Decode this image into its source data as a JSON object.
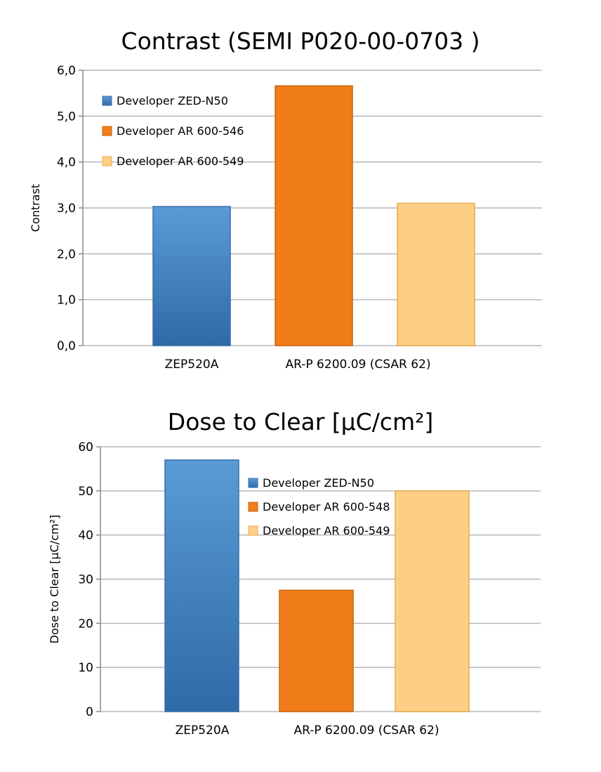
{
  "colors": {
    "blue_top": "#5a9bd6",
    "blue_bottom": "#2e6aa7",
    "blue_stroke": "#3a6fa8",
    "orange": "#f07d1a",
    "orange_stroke": "#c9650f",
    "light": "#fdcf86",
    "light_stroke": "#e9a94c"
  },
  "chart_data": [
    {
      "type": "bar",
      "title": "Contrast (SEMI P020-00-0703 )",
      "ylabel": "Contrast",
      "xlabel": "",
      "ylim": [
        0,
        6
      ],
      "yticks": [
        "0,0",
        "1,0",
        "2,0",
        "3,0",
        "4,0",
        "5,0",
        "6,0"
      ],
      "grid": true,
      "legend_position": "top-left",
      "categories": [
        "ZEP520A",
        "AR-P 6200.09 (CSAR 62)"
      ],
      "series": [
        {
          "name": "Developer ZED-N50",
          "values": [
            3.03,
            null
          ]
        },
        {
          "name": "Developer AR 600-546",
          "values": [
            null,
            5.66
          ]
        },
        {
          "name": "Developer AR 600-549",
          "values": [
            null,
            3.1
          ]
        }
      ]
    },
    {
      "type": "bar",
      "title": "Dose to Clear [µC/cm²]",
      "ylabel": "Dose to Clear [µC/cm²]",
      "xlabel": "",
      "ylim": [
        0,
        60
      ],
      "yticks": [
        "0",
        "10",
        "20",
        "30",
        "40",
        "50",
        "60"
      ],
      "grid": true,
      "legend_position": "top-center",
      "categories": [
        "ZEP520A",
        "AR-P 6200.09 (CSAR 62)"
      ],
      "series": [
        {
          "name": "Developer ZED-N50",
          "values": [
            57,
            null
          ]
        },
        {
          "name": "Developer AR 600-548",
          "values": [
            null,
            27.5
          ]
        },
        {
          "name": "Developer AR 600-549",
          "values": [
            null,
            50
          ]
        }
      ]
    }
  ]
}
